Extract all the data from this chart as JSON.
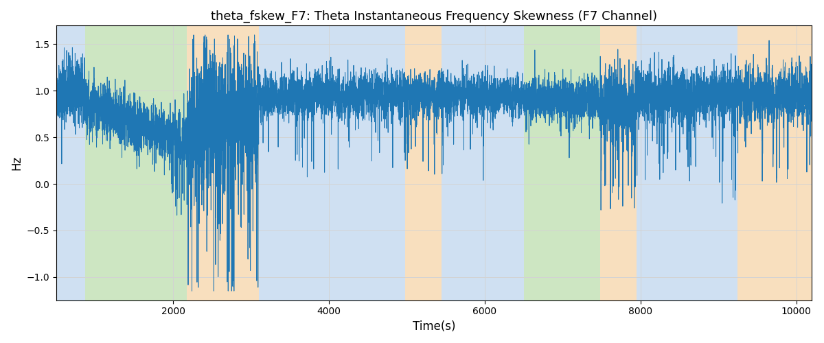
{
  "title": "theta_fskew_F7: Theta Instantaneous Frequency Skewness (F7 Channel)",
  "xlabel": "Time(s)",
  "ylabel": "Hz",
  "xlim": [
    500,
    10200
  ],
  "ylim": [
    -1.25,
    1.7
  ],
  "line_color": "#1f77b4",
  "line_width": 0.7,
  "bg_color": "white",
  "regions": [
    {
      "start": 500,
      "end": 870,
      "color": "#a8c8e8",
      "alpha": 0.55
    },
    {
      "start": 870,
      "end": 2180,
      "color": "#90c878",
      "alpha": 0.45
    },
    {
      "start": 2180,
      "end": 3100,
      "color": "#f0b870",
      "alpha": 0.45
    },
    {
      "start": 3100,
      "end": 4980,
      "color": "#a8c8e8",
      "alpha": 0.55
    },
    {
      "start": 4980,
      "end": 5450,
      "color": "#f0b870",
      "alpha": 0.45
    },
    {
      "start": 5450,
      "end": 6150,
      "color": "#a8c8e8",
      "alpha": 0.55
    },
    {
      "start": 6150,
      "end": 6500,
      "color": "#a8c8e8",
      "alpha": 0.55
    },
    {
      "start": 6500,
      "end": 7480,
      "color": "#90c878",
      "alpha": 0.45
    },
    {
      "start": 7480,
      "end": 7950,
      "color": "#f0b870",
      "alpha": 0.45
    },
    {
      "start": 7950,
      "end": 9250,
      "color": "#a8c8e8",
      "alpha": 0.55
    },
    {
      "start": 9250,
      "end": 10200,
      "color": "#f0b870",
      "alpha": 0.45
    }
  ],
  "yticks": [
    -1.0,
    -0.5,
    0.0,
    0.5,
    1.0,
    1.5
  ],
  "xticks": [
    2000,
    4000,
    6000,
    8000,
    10000
  ],
  "grid": true,
  "seed": 42,
  "n_points": 9700,
  "x_start": 500,
  "x_end": 10200
}
